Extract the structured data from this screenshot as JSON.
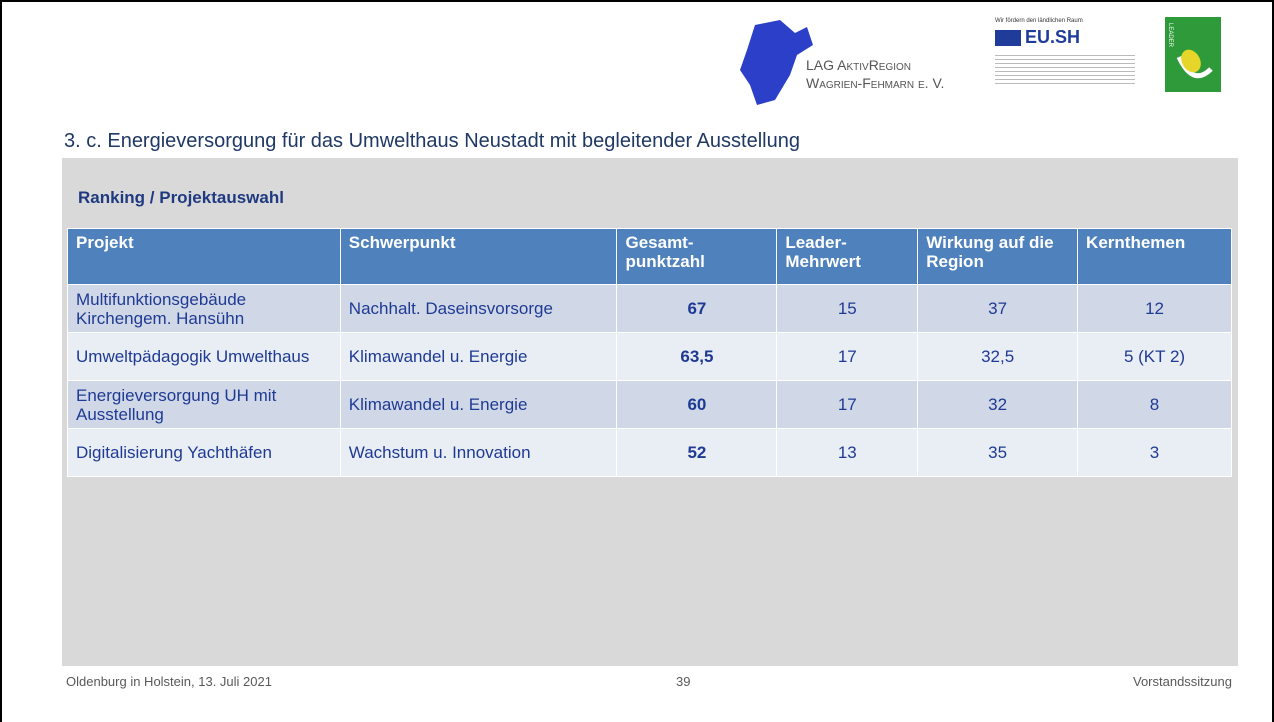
{
  "logos": {
    "lag_line1": "LAG AktivRegion",
    "lag_line2": "Wagrien-Fehmarn e. V.",
    "eu_tagline": "Wir fördern den ländlichen Raum",
    "eu_name": "EU.SH",
    "leader": "LEADER"
  },
  "title": "3. c. Energieversorgung für das Umwelthaus Neustadt mit begleitender Ausstellung",
  "section": "Ranking / Projektauswahl",
  "table": {
    "columns": [
      "Projekt",
      "Schwerpunkt",
      "Gesamt-punktzahl",
      "Leader-Mehrwert",
      "Wirkung auf die Region",
      "Kernthemen"
    ],
    "rows": [
      [
        "Multifunktionsgebäude Kirchengem. Hansühn",
        "Nachhalt. Daseinsvorsorge",
        "67",
        "15",
        "37",
        "12"
      ],
      [
        "Umweltpädagogik Umwelthaus",
        "Klimawandel u. Energie",
        "63,5",
        "17",
        "32,5",
        "5 (KT 2)"
      ],
      [
        "Energieversorgung UH mit Ausstellung",
        "Klimawandel u. Energie",
        "60",
        "17",
        "32",
        "8"
      ],
      [
        "Digitalisierung Yachthäfen",
        "Wachstum u. Innovation",
        "52",
        "13",
        "35",
        "3"
      ]
    ]
  },
  "footer": {
    "left": "Oldenburg in Holstein, 13. Juli 2021",
    "page": "39",
    "right": "Vorstandssitzung"
  }
}
